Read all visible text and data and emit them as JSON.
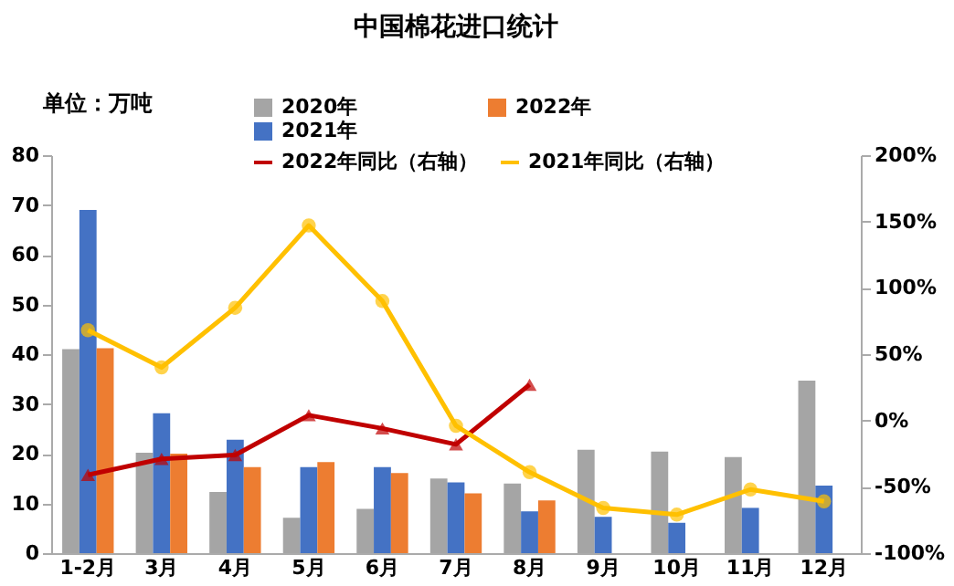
{
  "chart_data": {
    "type": "bar",
    "title": "中国棉花进口统计",
    "ylabel": "单位：万吨",
    "categories": [
      "1-2月",
      "3月",
      "4月",
      "5月",
      "6月",
      "7月",
      "8月",
      "9月",
      "10月",
      "11月",
      "12月"
    ],
    "series": [
      {
        "name": "2020年",
        "color": "#a5a5a5",
        "values": [
          41,
          20.2,
          12.3,
          7.1,
          8.9,
          15,
          14,
          20.8,
          20.4,
          19.3,
          34.7
        ]
      },
      {
        "name": "2021年",
        "color": "#4472c4",
        "values": [
          69,
          28.1,
          22.8,
          17.3,
          17.3,
          14.2,
          8.4,
          7.3,
          6.1,
          9.1,
          13.6
        ]
      },
      {
        "name": "2022年",
        "color": "#ed7d31",
        "values": [
          41.2,
          20,
          17.3,
          18.3,
          16.1,
          12,
          10.6,
          null,
          null,
          null,
          null
        ]
      },
      {
        "name": "2022年同比（右轴）",
        "type": "line",
        "axis": "y2",
        "marker": "triangle",
        "color": "#c00000",
        "values": [
          -41,
          -29,
          -26,
          4,
          -6,
          -18,
          27,
          null,
          null,
          null,
          null
        ]
      },
      {
        "name": "2021年同比（右轴）",
        "type": "line",
        "axis": "y2",
        "marker": "circle",
        "color": "#ffc000",
        "values": [
          68,
          40,
          85,
          147,
          90,
          -4,
          -39,
          -66,
          -71,
          -52,
          -61
        ]
      }
    ],
    "ylim": [
      0,
      80
    ],
    "yticks": [
      0,
      10,
      20,
      30,
      40,
      50,
      60,
      70,
      80
    ],
    "y2lim": [
      -100,
      200
    ],
    "y2ticks": [
      {
        "value": -100,
        "label": "-100%"
      },
      {
        "value": -50,
        "label": "-50%"
      },
      {
        "value": 0,
        "label": "0%"
      },
      {
        "value": 50,
        "label": "50%"
      },
      {
        "value": 100,
        "label": "100%"
      },
      {
        "value": 150,
        "label": "150%"
      },
      {
        "value": 200,
        "label": "200%"
      }
    ],
    "grid": false,
    "legend": "top",
    "line_style": "solid"
  }
}
